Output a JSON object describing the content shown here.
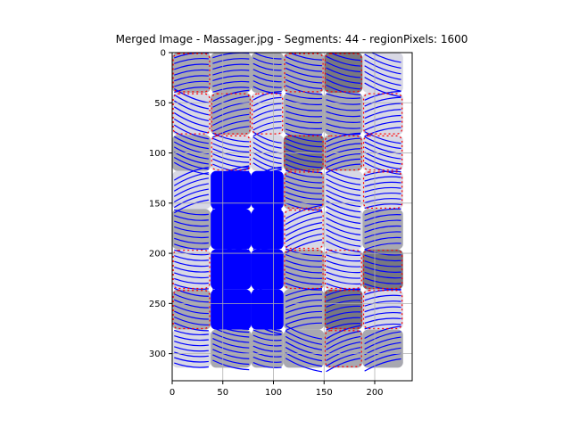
{
  "chart_data": {
    "type": "heatmap",
    "title": "Merged Image - Massager.jpg - Segments: 44 - regionPixels: 1600",
    "xlabel": "",
    "ylabel": "",
    "xlim": [
      0,
      237
    ],
    "ylim": [
      327,
      0
    ],
    "xticks": [
      0,
      50,
      100,
      150,
      200
    ],
    "yticks": [
      0,
      50,
      100,
      150,
      200,
      250,
      300
    ],
    "grid": true,
    "image_size": {
      "width": 228,
      "height": 314
    },
    "segment_count": 44,
    "colors": {
      "segment_boundary": "#ff0000",
      "flow_lines": "#0000ff",
      "light_region": "#d8d8e4",
      "mid_region": "#a8a8b0",
      "dark_region": "#787880",
      "grid": "#b0b0b0"
    }
  }
}
